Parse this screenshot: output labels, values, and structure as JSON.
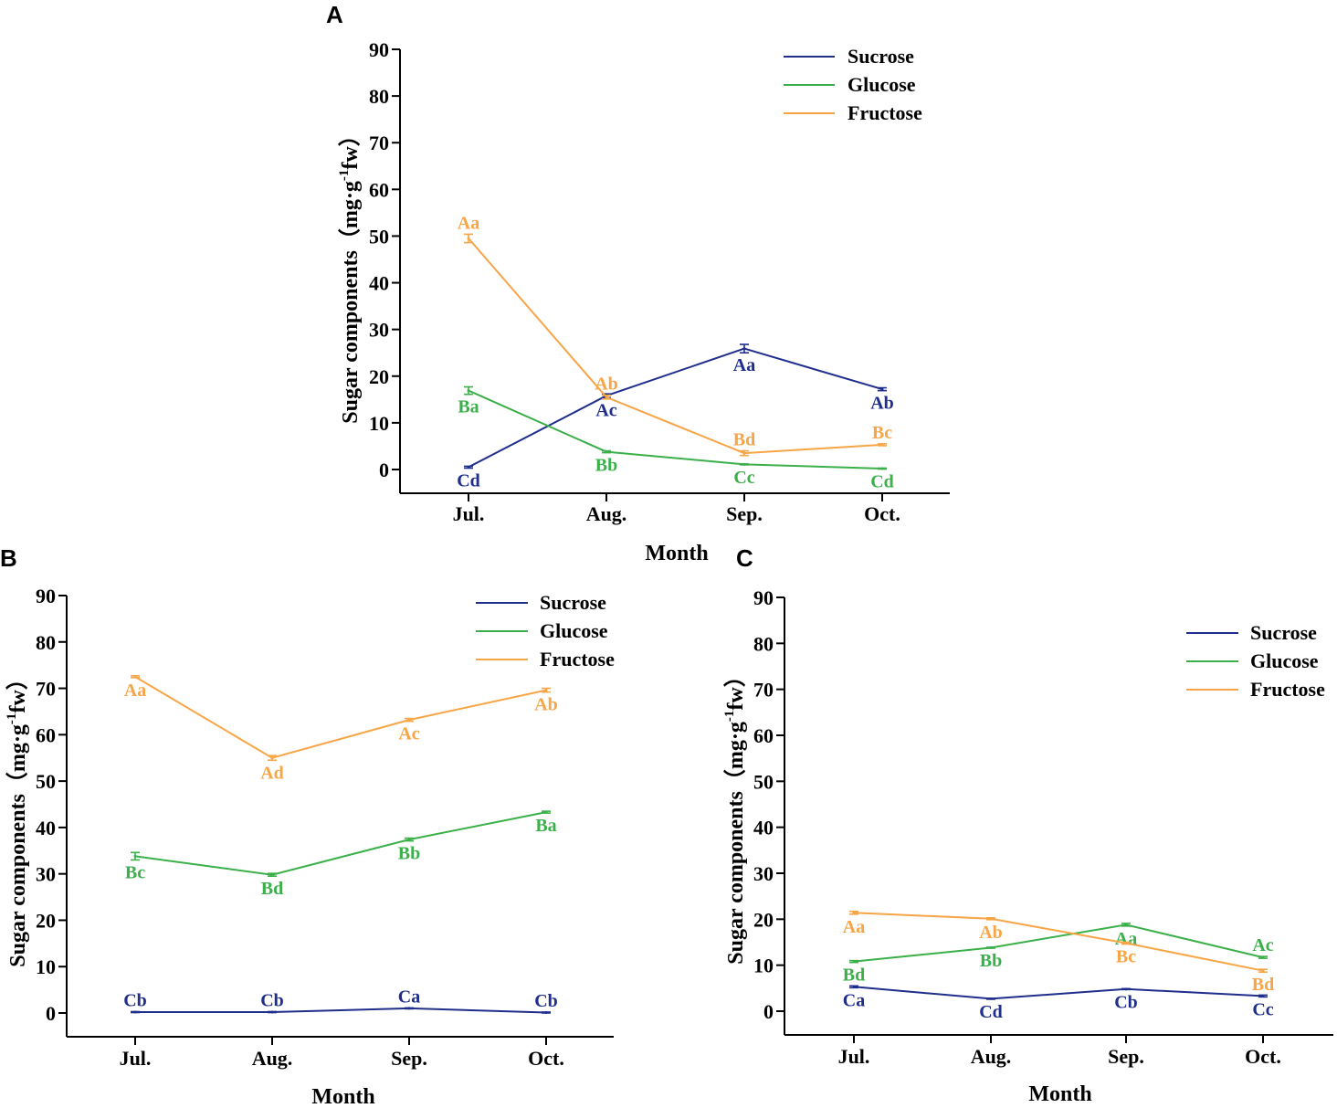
{
  "colors": {
    "Sucrose": "#1f2e8c",
    "Glucose": "#3bb04a",
    "Fructose": "#f7a546"
  },
  "chart_data": [
    {
      "panel": "A",
      "type": "line",
      "xlabel": "Month",
      "ylabel": "Sugar components（mg·g-1fw）",
      "ylabel_parts": {
        "before": "Sugar components（mg·g",
        "sup": "-1",
        "after": "fw）"
      },
      "categories": [
        "Jul.",
        "Aug.",
        "Sep.",
        "Oct."
      ],
      "ylim": [
        -5,
        90
      ],
      "yticks": [
        0,
        10,
        20,
        30,
        40,
        50,
        60,
        70,
        80,
        90
      ],
      "legend": [
        "Sucrose",
        "Glucose",
        "Fructose"
      ],
      "series": [
        {
          "name": "Sucrose",
          "values": [
            0.5,
            15.8,
            25.9,
            17.2
          ],
          "errors": [
            0.2,
            0.4,
            0.9,
            0.3
          ],
          "labels": [
            "Cd",
            "Ac",
            "Aa",
            "Ab"
          ],
          "label_pos": [
            "below",
            "below",
            "below",
            "below"
          ]
        },
        {
          "name": "Glucose",
          "values": [
            16.9,
            3.8,
            1.1,
            0.2
          ],
          "errors": [
            0.8,
            0.2,
            0.1,
            0.1
          ],
          "labels": [
            "Ba",
            "Bb",
            "Cc",
            "Cd"
          ],
          "label_pos": [
            "below",
            "below",
            "below",
            "below"
          ]
        },
        {
          "name": "Fructose",
          "values": [
            49.5,
            15.5,
            3.5,
            5.3
          ],
          "errors": [
            0.9,
            0.4,
            0.5,
            0.2
          ],
          "labels": [
            "Aa",
            "Ab",
            "Bd",
            "Bc"
          ],
          "label_pos": [
            "above",
            "above",
            "above",
            "above"
          ]
        }
      ]
    },
    {
      "panel": "B",
      "type": "line",
      "xlabel": "Month",
      "ylabel": "Sugar components（mg·g-1fw）",
      "ylabel_parts": {
        "before": "Sugar components（mg·g",
        "sup": "-1",
        "after": "fw）"
      },
      "categories": [
        "Jul.",
        "Aug.",
        "Sep.",
        "Oct."
      ],
      "ylim": [
        -5,
        90
      ],
      "yticks": [
        0,
        10,
        20,
        30,
        40,
        50,
        60,
        70,
        80,
        90
      ],
      "legend": [
        "Sucrose",
        "Glucose",
        "Fructose"
      ],
      "series": [
        {
          "name": "Sucrose",
          "values": [
            0.2,
            0.2,
            1.0,
            0.1
          ],
          "errors": [
            0.1,
            0.1,
            0.1,
            0.1
          ],
          "labels": [
            "Cb",
            "Cb",
            "Ca",
            "Cb"
          ],
          "label_pos": [
            "above",
            "above",
            "above",
            "above"
          ]
        },
        {
          "name": "Glucose",
          "values": [
            33.8,
            29.8,
            37.4,
            43.3
          ],
          "errors": [
            0.8,
            0.3,
            0.3,
            0.2
          ],
          "labels": [
            "Bc",
            "Bd",
            "Bb",
            "Ba"
          ],
          "label_pos": [
            "below",
            "below",
            "below",
            "below"
          ]
        },
        {
          "name": "Fructose",
          "values": [
            72.5,
            55.0,
            63.2,
            69.6
          ],
          "errors": [
            0.2,
            0.5,
            0.3,
            0.4
          ],
          "labels": [
            "Aa",
            "Ad",
            "Ac",
            "Ab"
          ],
          "label_pos": [
            "below",
            "below",
            "below",
            "below"
          ]
        }
      ]
    },
    {
      "panel": "C",
      "type": "line",
      "xlabel": "Month",
      "ylabel": "Sugar components（mg·g-1fw）",
      "ylabel_parts": {
        "before": "Sugar components（mg·g",
        "sup": "-1",
        "after": "fw）"
      },
      "categories": [
        "Jul.",
        "Aug.",
        "Sep.",
        "Oct."
      ],
      "ylim": [
        -5,
        90
      ],
      "yticks": [
        0,
        10,
        20,
        30,
        40,
        50,
        60,
        70,
        80,
        90
      ],
      "legend": [
        "Sucrose",
        "Glucose",
        "Fructose"
      ],
      "series": [
        {
          "name": "Sucrose",
          "values": [
            5.3,
            2.7,
            4.8,
            3.3
          ],
          "errors": [
            0.2,
            0.1,
            0.1,
            0.2
          ],
          "labels": [
            "Ca",
            "Cd",
            "Cb",
            "Cc"
          ],
          "label_pos": [
            "below",
            "below",
            "below",
            "below"
          ]
        },
        {
          "name": "Glucose",
          "values": [
            10.8,
            13.8,
            18.8,
            11.7
          ],
          "errors": [
            0.2,
            0.1,
            0.3,
            0.2
          ],
          "labels": [
            "Bd",
            "Bb",
            "Aa",
            "Ac"
          ],
          "label_pos": [
            "below",
            "below",
            "below",
            "above"
          ]
        },
        {
          "name": "Fructose",
          "values": [
            21.4,
            20.1,
            14.8,
            8.8
          ],
          "errors": [
            0.3,
            0.2,
            0.2,
            0.3
          ],
          "labels": [
            "Aa",
            "Ab",
            "Bc",
            "Bd"
          ],
          "label_pos": [
            "below",
            "below",
            "below",
            "below"
          ]
        }
      ]
    }
  ]
}
